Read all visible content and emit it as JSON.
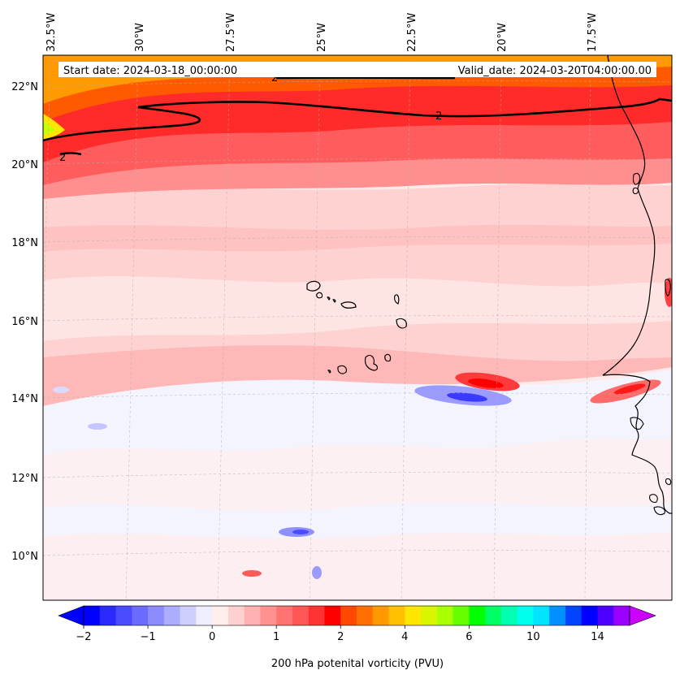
{
  "map": {
    "header": {
      "start_label": "Start date: 2024-03-18_00:00:00",
      "valid_label": "Valid_date: 2024-03-20T04:00:00.00"
    },
    "lon_labels": [
      "32.5°W",
      "30°W",
      "27.5°W",
      "25°W",
      "22.5°W",
      "20°W",
      "17.5°W"
    ],
    "lat_labels": [
      "22°N",
      "20°N",
      "18°N",
      "16°N",
      "14°N",
      "12°N",
      "10°N"
    ],
    "contour": {
      "level_label": "2",
      "color": "#000000"
    }
  },
  "colorbar": {
    "title": "200 hPa potenital vorticity (PVU)",
    "tick_labels": [
      "−2",
      "−1",
      "0",
      "1",
      "2",
      "4",
      "6",
      "10",
      "14"
    ],
    "colors": [
      "#0000ff",
      "#2a2aff",
      "#4a4aff",
      "#6b6bff",
      "#8c8cff",
      "#adadff",
      "#cfcfff",
      "#eeeeff",
      "#ffeeee",
      "#ffd0d0",
      "#ffb0b0",
      "#ff9191",
      "#ff7373",
      "#ff5656",
      "#ff3333",
      "#ff0000",
      "#ff4800",
      "#ff7000",
      "#ff9900",
      "#ffc000",
      "#ffe600",
      "#d9f500",
      "#aaff00",
      "#66ff00",
      "#00ff00",
      "#00ff66",
      "#00ffb0",
      "#00ffee",
      "#00e4ff",
      "#0090ff",
      "#0044ff",
      "#0000ff",
      "#4d00ff",
      "#9900ff"
    ],
    "under_color": "#0000ff",
    "over_color": "#cc00ff",
    "units": "PVU"
  },
  "style": {
    "background_pink": "#ffd6d6",
    "light_pink": "#ffeaea",
    "white_blue": "#eef0ff",
    "coast": "#000000"
  }
}
